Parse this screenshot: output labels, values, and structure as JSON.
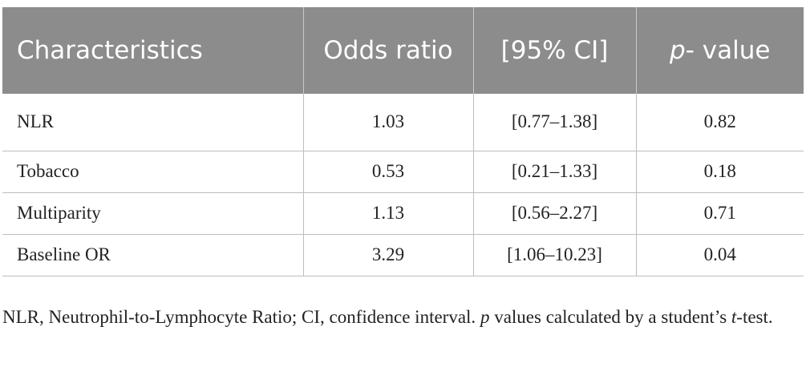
{
  "table": {
    "headers": {
      "characteristics": "Characteristics",
      "odds_ratio": "Odds ratio",
      "ci": "[95% CI]",
      "p_italic": "p",
      "p_rest": "- value"
    },
    "rows": [
      {
        "characteristic": "NLR",
        "odds_ratio": "1.03",
        "ci": "[0.77–1.38]",
        "p_value": "0.82"
      },
      {
        "characteristic": "Tobacco",
        "odds_ratio": "0.53",
        "ci": "[0.21–1.33]",
        "p_value": "0.18"
      },
      {
        "characteristic": "Multiparity",
        "odds_ratio": "1.13",
        "ci": "[0.56–2.27]",
        "p_value": "0.71"
      },
      {
        "characteristic": "Baseline OR",
        "odds_ratio": "3.29",
        "ci": "[1.06–10.23]",
        "p_value": "0.04"
      }
    ]
  },
  "footnote": {
    "part1": "NLR, Neutrophil-to-Lymphocyte Ratio; CI, confidence interval. ",
    "p_italic": "p",
    "part2": " values calculated by a student’s ",
    "t_italic": "t",
    "part3": "-test."
  },
  "colors": {
    "header_bg": "#8c8c8c",
    "header_text": "#ffffff",
    "body_text": "#222222",
    "rule": "#bdbdbd"
  }
}
